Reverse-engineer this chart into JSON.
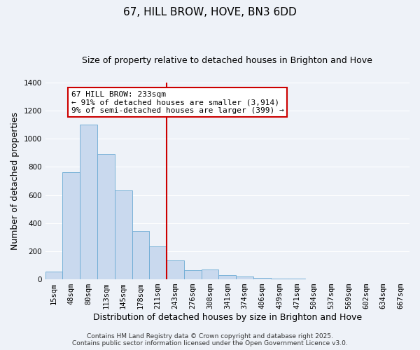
{
  "title": "67, HILL BROW, HOVE, BN3 6DD",
  "subtitle": "Size of property relative to detached houses in Brighton and Hove",
  "xlabel": "Distribution of detached houses by size in Brighton and Hove",
  "ylabel": "Number of detached properties",
  "bar_labels": [
    "15sqm",
    "48sqm",
    "80sqm",
    "113sqm",
    "145sqm",
    "178sqm",
    "211sqm",
    "243sqm",
    "276sqm",
    "308sqm",
    "341sqm",
    "374sqm",
    "406sqm",
    "439sqm",
    "471sqm",
    "504sqm",
    "537sqm",
    "569sqm",
    "602sqm",
    "634sqm",
    "667sqm"
  ],
  "bar_values": [
    55,
    760,
    1100,
    890,
    630,
    345,
    235,
    135,
    65,
    70,
    30,
    20,
    10,
    5,
    3,
    2,
    1,
    1,
    0,
    0,
    1
  ],
  "bar_color": "#c9d9ee",
  "bar_edge_color": "#6aaad4",
  "vline_index": 7,
  "vline_color": "#cc0000",
  "ylim": [
    0,
    1400
  ],
  "annotation_title": "67 HILL BROW: 233sqm",
  "annotation_line1": "← 91% of detached houses are smaller (3,914)",
  "annotation_line2": "9% of semi-detached houses are larger (399) →",
  "annotation_box_color": "#ffffff",
  "annotation_box_edge": "#cc0000",
  "footer1": "Contains HM Land Registry data © Crown copyright and database right 2025.",
  "footer2": "Contains public sector information licensed under the Open Government Licence v3.0.",
  "background_color": "#eef2f8",
  "plot_bg_color": "#eef2f8",
  "grid_color": "#ffffff",
  "title_fontsize": 11,
  "subtitle_fontsize": 9,
  "axis_label_fontsize": 9,
  "tick_fontsize": 7.5,
  "annotation_fontsize": 8,
  "footer_fontsize": 6.5
}
